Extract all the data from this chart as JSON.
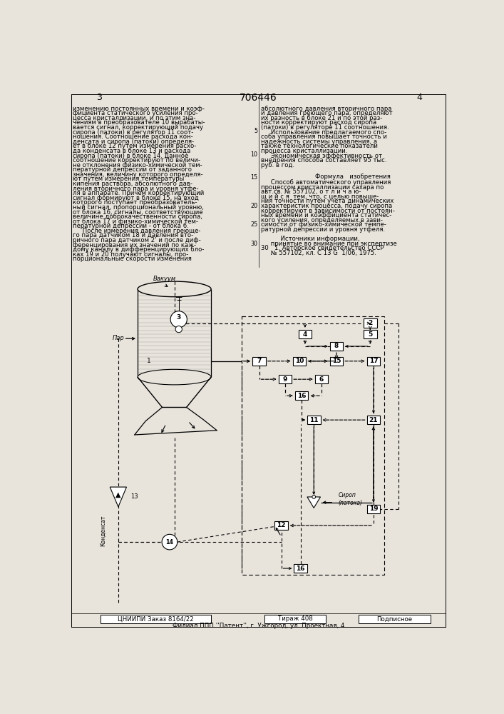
{
  "title": "706446",
  "pg_left": "3",
  "pg_right": "4",
  "bg_color": "#e8e4dc",
  "lc": "#000000",
  "tc": "#000000",
  "left_col_text": [
    "изменению постоянных времени и коэф-",
    "фициента статического усиления про-",
    "цесса кристаллизации, и по этим зна-",
    "чениям в преобразователе 10 вырабаты-",
    "вается сигнал, корректирующий подачу",
    "сиропа (патоки) в регулятор 11 соот-",
    "ношения. Соотношение расхода кон-",
    "денсата и сиропа (патоки) определя-",
    "ет в блоке 12 путем измерения расхо-",
    "да конденсата в блоке 13 и расхода",
    "сиропа (патоки) в блоке 14. Данное",
    "соотношение корректируют по величи-",
    "не отклонения физико-химической тем-",
    "пературной депрессии от заданного",
    "значения, величину которого определя-",
    "ют путем измерения температуры",
    "кипения раствора, абсолютного дав-",
    "ления вторичного пара и уровня утфе-",
    "ля в аппарате. Причем корректирующий",
    "сигнал формируют в блоке 15, на вход",
    "которого поступает преобразователь-",
    "ный сигнал, пропорциональный уровню,",
    "от блока 16, сигналы, соответствующие",
    "величине доброкачественности сиропа,",
    "от блока 17 и физико-химической тем-",
    "пературной депрессии - от блока 6.",
    "     После измерения давления греюще-",
    "го пара датчиком 18 и давления вто-",
    "ричного пара датчиком 2' и после диф-",
    "ференцирования их значений по каж-",
    "дому каналу в дифференцирующих бло-",
    "ках 19 и 20 получают сигналы, про-",
    "порциональные скорости изменения"
  ],
  "right_col_text": [
    "абсолютного давления вторичного пара",
    "и давления греющего пара, определяют",
    "их разность в блоке 21 и по этой раз-",
    "ности корректируют расход сиропа",
    "(патоки) в регуляторе 11 соотношения.",
    "     Использование предлагаемого спо-",
    "соба управления повышает точность и",
    "надежность системы управления, а",
    "также технологические показатели",
    "процесса кристаллизации.",
    "     Экономическая эффективность от",
    "внедрения способа составляет 95 тыс.",
    "руб. в год."
  ],
  "formula_header": "Формула   изобретения",
  "formula_text": [
    "     Способ автоматического управления",
    "процессом кристаллизации сахара по",
    "авт.св. № 557102, о т л и ч а ю-",
    "щ и й с я  тем, что, с целью повыше-",
    "ния точности путем учета динамических",
    "характеристик процесса, подачу сиропа",
    "корректируют в зависимости от постоян-",
    "ных времени и коэффициента статичес-",
    "кого усиления, определяемых в зави-",
    "симости от физико-химической темпе-",
    "ратурной депрессии и уровня утфеля."
  ],
  "sources_header": "          Источники информации,",
  "sources_text": [
    "     принятые во внимание при экспертизе",
    "30   1. Авторское свидетельство СССР",
    "     № 557102, кл. С 13 G  1/06, 1975."
  ],
  "footer1": "ЦНИИПИ Заказ 8164/22",
  "footer2": "Тираж 408",
  "footer3": "Подписное",
  "footer4": "Филиал ППП ''Патент'', г. Ужгород, ул. Проектная, 4",
  "line_nums": [
    [
      5,
      1
    ],
    [
      10,
      6
    ],
    [
      15,
      13
    ],
    [
      20,
      19
    ],
    [
      25,
      24
    ],
    [
      30,
      27
    ]
  ]
}
